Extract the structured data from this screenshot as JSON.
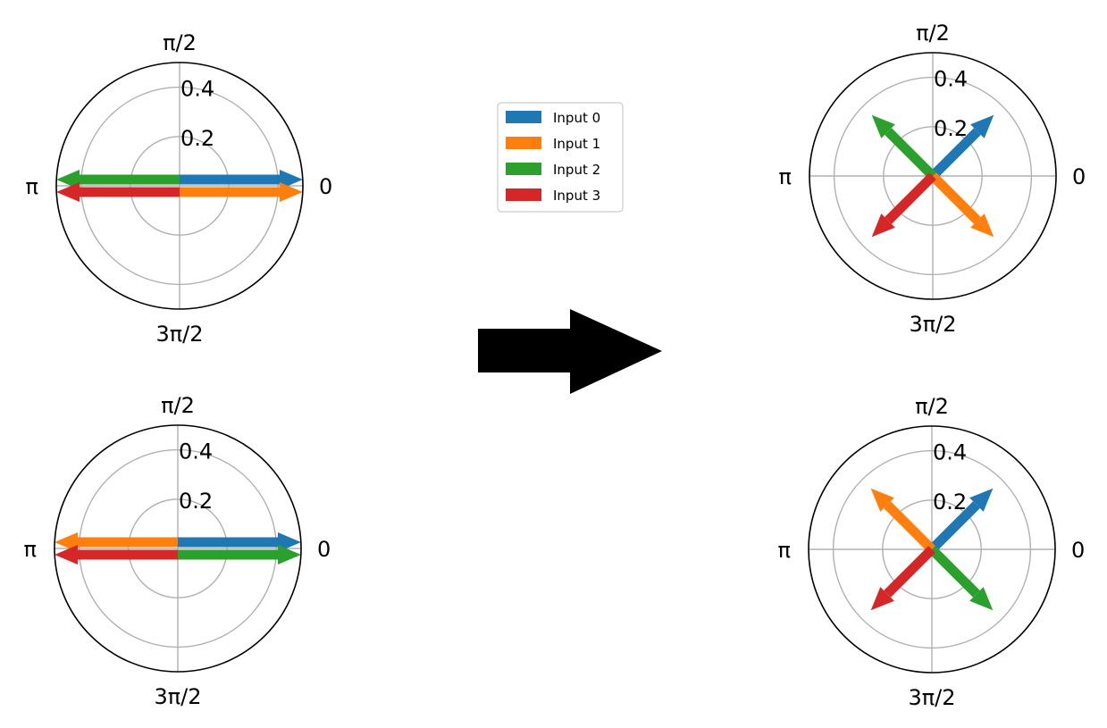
{
  "chart_data": [
    {
      "type": "polar-quiver",
      "theta_ticks": [
        "0",
        "π/2",
        "π",
        "3π/2"
      ],
      "r_ticks": [
        "0.2",
        "0.4"
      ],
      "rlim": [
        0,
        0.5
      ],
      "grid": true,
      "series": [
        {
          "name": "Input 0",
          "color": "#1f77b4",
          "theta": 0,
          "r": 0.5
        },
        {
          "name": "Input 1",
          "color": "#ff7f0e",
          "theta": 0,
          "r": 0.5
        },
        {
          "name": "Input 2",
          "color": "#2ca02c",
          "theta": 3.14159,
          "r": 0.5
        },
        {
          "name": "Input 3",
          "color": "#d62728",
          "theta": 3.14159,
          "r": 0.5
        }
      ]
    },
    {
      "type": "polar-quiver",
      "theta_ticks": [
        "0",
        "π/2",
        "π",
        "3π/2"
      ],
      "r_ticks": [
        "0.2",
        "0.4"
      ],
      "rlim": [
        0,
        0.5
      ],
      "grid": true,
      "series": [
        {
          "name": "Input 0",
          "color": "#1f77b4",
          "theta": 0,
          "r": 0.5
        },
        {
          "name": "Input 1",
          "color": "#ff7f0e",
          "theta": 3.14159,
          "r": 0.5
        },
        {
          "name": "Input 2",
          "color": "#2ca02c",
          "theta": 0,
          "r": 0.5
        },
        {
          "name": "Input 3",
          "color": "#d62728",
          "theta": 3.14159,
          "r": 0.5
        }
      ]
    },
    {
      "type": "polar-quiver",
      "theta_ticks": [
        "0",
        "π/2",
        "π",
        "3π/2"
      ],
      "r_ticks": [
        "0.2",
        "0.4"
      ],
      "rlim": [
        0,
        0.5
      ],
      "grid": true,
      "series": [
        {
          "name": "Input 0",
          "color": "#1f77b4",
          "theta": 0.7854,
          "r": 0.35
        },
        {
          "name": "Input 1",
          "color": "#ff7f0e",
          "theta": 5.4978,
          "r": 0.35
        },
        {
          "name": "Input 2",
          "color": "#2ca02c",
          "theta": 2.3562,
          "r": 0.35
        },
        {
          "name": "Input 3",
          "color": "#d62728",
          "theta": 3.927,
          "r": 0.35
        }
      ]
    },
    {
      "type": "polar-quiver",
      "theta_ticks": [
        "0",
        "π/2",
        "π",
        "3π/2"
      ],
      "r_ticks": [
        "0.2",
        "0.4"
      ],
      "rlim": [
        0,
        0.5
      ],
      "grid": true,
      "series": [
        {
          "name": "Input 0",
          "color": "#1f77b4",
          "theta": 0.7854,
          "r": 0.35
        },
        {
          "name": "Input 1",
          "color": "#ff7f0e",
          "theta": 2.3562,
          "r": 0.35
        },
        {
          "name": "Input 2",
          "color": "#2ca02c",
          "theta": 5.4978,
          "r": 0.35
        },
        {
          "name": "Input 3",
          "color": "#d62728",
          "theta": 3.927,
          "r": 0.35
        }
      ]
    }
  ],
  "legend": {
    "placement": "center",
    "entries": [
      {
        "label": "Input 0",
        "color": "#1f77b4"
      },
      {
        "label": "Input 1",
        "color": "#ff7f0e"
      },
      {
        "label": "Input 2",
        "color": "#2ca02c"
      },
      {
        "label": "Input 3",
        "color": "#d62728"
      }
    ]
  },
  "transition_arrow": {
    "color": "#000000",
    "direction": "right-arrow-icon"
  }
}
